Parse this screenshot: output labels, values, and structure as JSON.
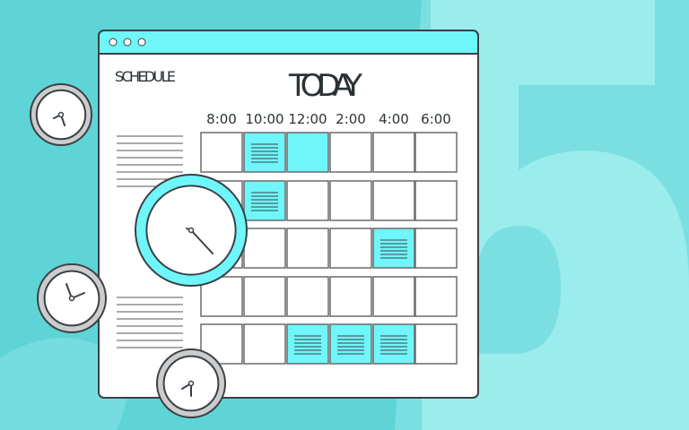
{
  "window": {
    "dots": 3,
    "section_label": "SCHEDULE",
    "title": "TODAY",
    "time_columns": [
      "8:00",
      "10:00",
      "12:00",
      "2:00",
      "4:00",
      "6:00"
    ],
    "rows": [
      [
        "empty",
        "lines",
        "filled",
        "empty",
        "empty",
        "empty"
      ],
      [
        "empty",
        "lines",
        "empty",
        "empty",
        "empty",
        "empty"
      ],
      [
        "empty",
        "empty",
        "empty",
        "empty",
        "lines",
        "empty"
      ],
      [
        "empty",
        "empty",
        "empty",
        "empty",
        "empty",
        "empty"
      ],
      [
        "empty",
        "empty",
        "lines",
        "lines",
        "lines",
        "empty"
      ]
    ]
  },
  "background_glyph": "5",
  "colors": {
    "background": "#5fd4d6",
    "accent": "#6ff6fa",
    "outline": "#3a4146",
    "cell_border": "#6a6a6a"
  }
}
